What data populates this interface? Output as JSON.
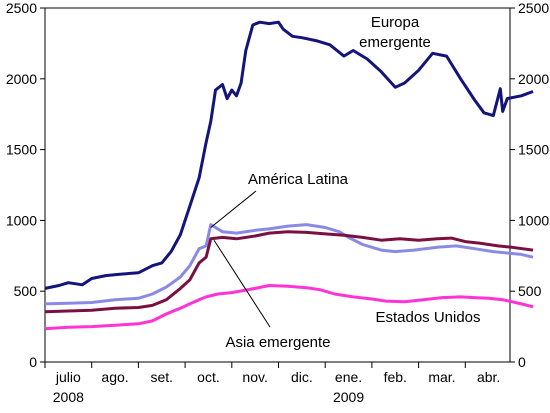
{
  "chart_data": {
    "type": "line",
    "title": "",
    "xlabel": "",
    "ylabel": "",
    "ylim": [
      0,
      2500
    ],
    "yticks": [
      0,
      500,
      1000,
      1500,
      2000,
      2500
    ],
    "secondary_yticks": [
      0,
      500,
      1000,
      1500,
      2000,
      2500
    ],
    "grid": false,
    "x_categories": [
      "julio",
      "ago.",
      "set.",
      "oct.",
      "nov.",
      "dic.",
      "ene.",
      "feb.",
      "mar.",
      "abr."
    ],
    "x_year_labels": [
      {
        "category": "julio",
        "label": "2008"
      },
      {
        "category": "ene.",
        "label": "2009"
      }
    ],
    "x_range_months": [
      0,
      10
    ],
    "series": [
      {
        "name": "Europa emergente",
        "color": "#14147a",
        "points": [
          [
            0,
            520
          ],
          [
            0.3,
            540
          ],
          [
            0.5,
            560
          ],
          [
            0.8,
            545
          ],
          [
            1.0,
            590
          ],
          [
            1.3,
            610
          ],
          [
            1.6,
            620
          ],
          [
            2.0,
            630
          ],
          [
            2.3,
            680
          ],
          [
            2.5,
            700
          ],
          [
            2.7,
            780
          ],
          [
            2.9,
            900
          ],
          [
            3.1,
            1100
          ],
          [
            3.3,
            1300
          ],
          [
            3.45,
            1550
          ],
          [
            3.55,
            1700
          ],
          [
            3.65,
            1920
          ],
          [
            3.8,
            1960
          ],
          [
            3.9,
            1860
          ],
          [
            4.0,
            1920
          ],
          [
            4.1,
            1880
          ],
          [
            4.2,
            1970
          ],
          [
            4.3,
            2200
          ],
          [
            4.45,
            2380
          ],
          [
            4.6,
            2400
          ],
          [
            4.8,
            2390
          ],
          [
            5.0,
            2400
          ],
          [
            5.1,
            2350
          ],
          [
            5.3,
            2300
          ],
          [
            5.5,
            2290
          ],
          [
            5.8,
            2270
          ],
          [
            6.1,
            2240
          ],
          [
            6.4,
            2160
          ],
          [
            6.6,
            2200
          ],
          [
            6.9,
            2140
          ],
          [
            7.2,
            2050
          ],
          [
            7.5,
            1940
          ],
          [
            7.7,
            1970
          ],
          [
            8.0,
            2060
          ],
          [
            8.3,
            2180
          ],
          [
            8.6,
            2160
          ],
          [
            8.9,
            2000
          ],
          [
            9.2,
            1850
          ],
          [
            9.4,
            1760
          ],
          [
            9.6,
            1740
          ],
          [
            9.75,
            1930
          ],
          [
            9.8,
            1770
          ],
          [
            9.9,
            1860
          ],
          [
            10.2,
            1880
          ],
          [
            10.45,
            1910
          ]
        ]
      },
      {
        "name": "América Latina",
        "color": "#8a8ae6",
        "points": [
          [
            0,
            410
          ],
          [
            0.5,
            415
          ],
          [
            1.0,
            420
          ],
          [
            1.5,
            440
          ],
          [
            2.0,
            450
          ],
          [
            2.3,
            480
          ],
          [
            2.6,
            530
          ],
          [
            2.9,
            600
          ],
          [
            3.1,
            680
          ],
          [
            3.3,
            800
          ],
          [
            3.45,
            820
          ],
          [
            3.55,
            970
          ],
          [
            3.8,
            920
          ],
          [
            4.1,
            910
          ],
          [
            4.5,
            930
          ],
          [
            4.8,
            940
          ],
          [
            5.2,
            960
          ],
          [
            5.6,
            970
          ],
          [
            6.0,
            950
          ],
          [
            6.3,
            920
          ],
          [
            6.5,
            880
          ],
          [
            6.8,
            830
          ],
          [
            7.2,
            790
          ],
          [
            7.5,
            780
          ],
          [
            7.9,
            790
          ],
          [
            8.4,
            810
          ],
          [
            8.8,
            820
          ],
          [
            9.2,
            800
          ],
          [
            9.6,
            780
          ],
          [
            9.9,
            770
          ],
          [
            10.2,
            760
          ],
          [
            10.45,
            740
          ]
        ]
      },
      {
        "name": "Asia emergente",
        "color": "#7a1040",
        "points": [
          [
            0,
            355
          ],
          [
            0.5,
            360
          ],
          [
            1.0,
            365
          ],
          [
            1.5,
            380
          ],
          [
            2.0,
            385
          ],
          [
            2.3,
            400
          ],
          [
            2.6,
            440
          ],
          [
            2.9,
            520
          ],
          [
            3.1,
            580
          ],
          [
            3.3,
            700
          ],
          [
            3.45,
            740
          ],
          [
            3.55,
            870
          ],
          [
            3.8,
            880
          ],
          [
            4.1,
            870
          ],
          [
            4.5,
            890
          ],
          [
            4.8,
            910
          ],
          [
            5.2,
            920
          ],
          [
            5.6,
            915
          ],
          [
            6.0,
            905
          ],
          [
            6.4,
            895
          ],
          [
            6.8,
            880
          ],
          [
            7.2,
            860
          ],
          [
            7.6,
            870
          ],
          [
            8.0,
            860
          ],
          [
            8.4,
            870
          ],
          [
            8.7,
            875
          ],
          [
            9.0,
            850
          ],
          [
            9.3,
            840
          ],
          [
            9.7,
            820
          ],
          [
            10.0,
            810
          ],
          [
            10.45,
            790
          ]
        ]
      },
      {
        "name": "Estados Unidos",
        "color": "#ff33d6",
        "points": [
          [
            0,
            235
          ],
          [
            0.5,
            245
          ],
          [
            1.0,
            250
          ],
          [
            1.5,
            260
          ],
          [
            2.0,
            270
          ],
          [
            2.3,
            290
          ],
          [
            2.6,
            340
          ],
          [
            2.9,
            380
          ],
          [
            3.1,
            410
          ],
          [
            3.3,
            440
          ],
          [
            3.45,
            460
          ],
          [
            3.7,
            480
          ],
          [
            4.0,
            490
          ],
          [
            4.5,
            520
          ],
          [
            4.8,
            540
          ],
          [
            5.2,
            535
          ],
          [
            5.6,
            525
          ],
          [
            5.9,
            510
          ],
          [
            6.2,
            480
          ],
          [
            6.6,
            460
          ],
          [
            7.0,
            445
          ],
          [
            7.3,
            430
          ],
          [
            7.7,
            425
          ],
          [
            8.1,
            440
          ],
          [
            8.5,
            455
          ],
          [
            8.9,
            460
          ],
          [
            9.2,
            455
          ],
          [
            9.5,
            450
          ],
          [
            9.8,
            440
          ],
          [
            10.2,
            410
          ],
          [
            10.45,
            390
          ]
        ]
      }
    ],
    "annotations": [
      {
        "text": "Europa",
        "series": "Europa emergente"
      },
      {
        "text": "emergente",
        "series": "Europa emergente"
      },
      {
        "text": "América Latina",
        "series": "América Latina"
      },
      {
        "text": "Asia emergente",
        "series": "Asia emergente"
      },
      {
        "text": "Estados Unidos",
        "series": "Estados Unidos"
      }
    ]
  }
}
